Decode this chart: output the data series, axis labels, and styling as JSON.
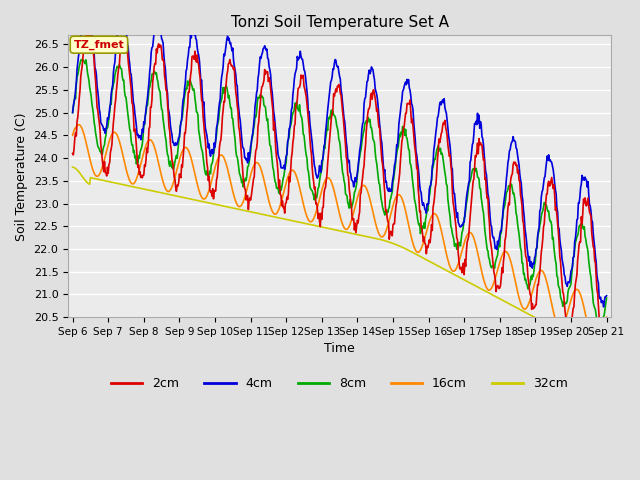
{
  "title": "Tonzi Soil Temperature Set A",
  "xlabel": "Time",
  "ylabel": "Soil Temperature (C)",
  "ylim": [
    20.5,
    26.7
  ],
  "annotation": "TZ_fmet",
  "annotation_bg": "#ffffcc",
  "annotation_border": "#999900",
  "bg_color": "#e0e0e0",
  "plot_bg": "#ebebeb",
  "grid_color": "#ffffff",
  "colors": {
    "2cm": "#dd0000",
    "4cm": "#0000dd",
    "8cm": "#00aa00",
    "16cm": "#ff8800",
    "32cm": "#cccc00"
  },
  "tick_labels": [
    "Sep 6",
    "Sep 7",
    "Sep 8",
    "Sep 9",
    "Sep 10",
    "Sep 11",
    "Sep 12",
    "Sep 13",
    "Sep 14",
    "Sep 15",
    "Sep 16",
    "Sep 17",
    "Sep 18",
    "Sep 19",
    "Sep 20",
    "Sep 21"
  ],
  "n_points": 721
}
